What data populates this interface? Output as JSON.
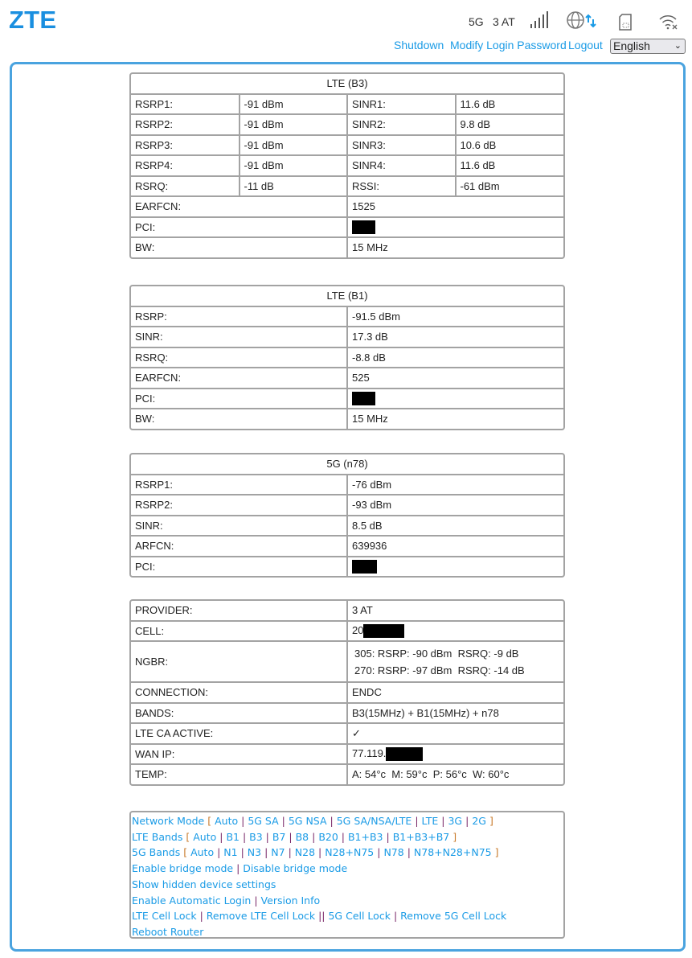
{
  "header": {
    "logo": "ZTE",
    "network_type": "5G",
    "provider": "3 AT",
    "signal_icon": "signal-bars-icon",
    "internet_icon": "globe-data-icon",
    "sim_icon": "sim-card-icon",
    "wifi_icon": "wifi-off-icon",
    "links": {
      "shutdown": "Shutdown",
      "modify_password": "Modify Login Password",
      "logout": "Logout"
    },
    "language": "English",
    "accent_color": "#1a9be6"
  },
  "lte_b3": {
    "title": "LTE (B3)",
    "rows": [
      [
        "RSRP1:",
        "-91 dBm",
        "SINR1:",
        "11.6 dB"
      ],
      [
        "RSRP2:",
        "-91 dBm",
        "SINR2:",
        "9.8 dB"
      ],
      [
        "RSRP3:",
        "-91 dBm",
        "SINR3:",
        "10.6 dB"
      ],
      [
        "RSRP4:",
        "-91 dBm",
        "SINR4:",
        "11.6 dB"
      ],
      [
        "RSRQ:",
        "-11 dB",
        "RSSI:",
        "-61 dBm"
      ]
    ],
    "earfcn_label": "EARFCN:",
    "earfcn": "1525",
    "pci_label": "PCI:",
    "bw_label": "BW:",
    "bw": "15 MHz"
  },
  "lte_b1": {
    "title": "LTE (B1)",
    "rows": [
      [
        "RSRP:",
        "-91.5 dBm"
      ],
      [
        "SINR:",
        "17.3 dB"
      ],
      [
        "RSRQ:",
        "-8.8 dB"
      ],
      [
        "EARFCN:",
        "525"
      ]
    ],
    "pci_label": "PCI:",
    "bw_label": "BW:",
    "bw": "15 MHz"
  },
  "nr_n78": {
    "title": "5G (n78)",
    "rows": [
      [
        "RSRP1:",
        "-76 dBm"
      ],
      [
        "RSRP2:",
        "-93 dBm"
      ],
      [
        "SINR:",
        "8.5 dB"
      ],
      [
        "ARFCN:",
        "639936"
      ]
    ],
    "pci_label": "PCI:"
  },
  "info": {
    "provider_label": "PROVIDER:",
    "provider": "3 AT",
    "cell_label": "CELL:",
    "cell_prefix": "20",
    "ngbr_label": "NGBR:",
    "ngbr": [
      "305: RSRP: -90 dBm  RSRQ: -9 dB",
      "270: RSRP: -97 dBm  RSRQ: -14 dB"
    ],
    "connection_label": "CONNECTION:",
    "connection": "ENDC",
    "bands_label": "BANDS:",
    "bands": "B3(15MHz) + B1(15MHz) + n78",
    "ca_label": "LTE CA ACTIVE:",
    "ca": "✓",
    "wan_label": "WAN IP:",
    "wan_prefix": "77.119.",
    "temp_label": "TEMP:",
    "temp": "A: 54°c  M: 59°c  P: 56°c  W: 60°c"
  },
  "controls": {
    "network_mode": {
      "label": "Network Mode",
      "options": [
        "Auto",
        "5G SA",
        "5G NSA",
        "5G SA/NSA/LTE",
        "LTE",
        "3G",
        "2G"
      ]
    },
    "lte_bands": {
      "label": "LTE Bands",
      "options": [
        "Auto",
        "B1",
        "B3",
        "B7",
        "B8",
        "B20",
        "B1+B3",
        "B1+B3+B7"
      ]
    },
    "nr_bands": {
      "label": "5G Bands",
      "options": [
        "Auto",
        "N1",
        "N3",
        "N7",
        "N28",
        "N28+N75",
        "N78",
        "N78+N28+N75"
      ]
    },
    "bridge": [
      "Enable bridge mode",
      "Disable bridge mode"
    ],
    "hidden": "Show hidden device settings",
    "misc": [
      "Enable Automatic Login",
      "Version Info"
    ],
    "lock": [
      "LTE Cell Lock",
      "Remove LTE Cell Lock",
      "5G Cell Lock",
      "Remove 5G Cell Lock"
    ],
    "reboot": "Reboot Router"
  }
}
